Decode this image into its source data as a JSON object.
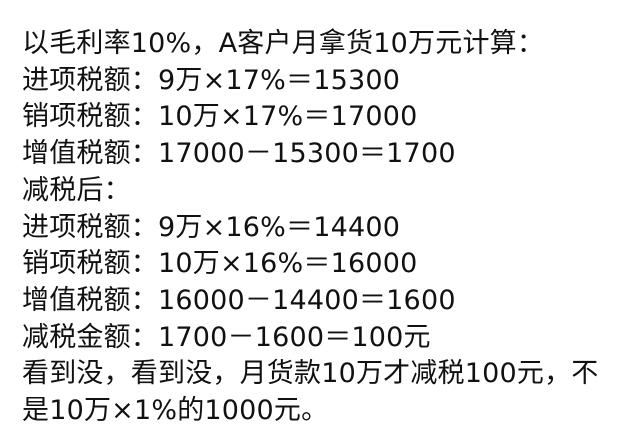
{
  "lines": [
    "以毛利率10%，A客户月拿货10万元计算：",
    "进项税额：9万×17%＝15300",
    "销项税额：10万×17%＝17000",
    "增值税额：17000－15300＝1700",
    "减税后：",
    "进项税额：9万×16%＝14400",
    "销项税额：10万×16%＝16000",
    "增值税额：16000－14400＝1600",
    "减税金额：1700－1600＝100元",
    "看到没，看到没，月货款10万才减税100元，不",
    "是10万×1%的1000元。"
  ]
}
